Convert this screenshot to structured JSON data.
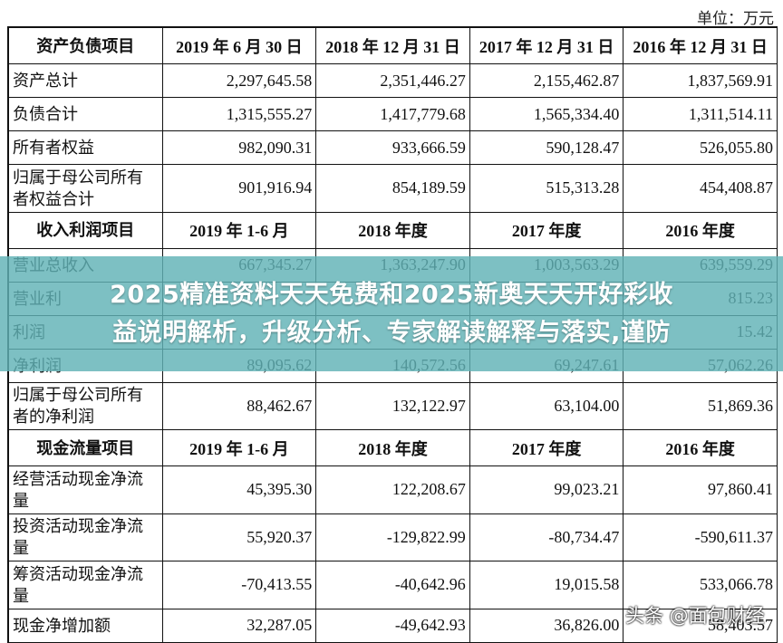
{
  "unit": "单位：万元",
  "sections": [
    {
      "header": [
        "资产负债项目",
        "2019 年 6 月 30 日",
        "2018 年 12 月 31 日",
        "2017 年 12 月 31 日",
        "2016 年 12 月 31 日"
      ],
      "rows": [
        [
          "资产总计",
          "2,297,645.58",
          "2,351,446.27",
          "2,155,462.87",
          "1,837,569.91"
        ],
        [
          "负债合计",
          "1,315,555.27",
          "1,417,779.68",
          "1,565,334.40",
          "1,311,514.11"
        ],
        [
          "所有者权益",
          "982,090.31",
          "933,666.59",
          "590,128.47",
          "526,055.80"
        ],
        [
          "归属于母公司所有者权益合计",
          "901,916.94",
          "854,189.59",
          "515,313.28",
          "454,408.87"
        ]
      ]
    },
    {
      "header": [
        "收入利润项目",
        "2019 年 1-6 月",
        "2018 年度",
        "2017 年度",
        "2016 年度"
      ],
      "rows": [
        [
          "营业总收入",
          "667,345.27",
          "1,363,247.90",
          "1,003,563.29",
          "639,559.29"
        ],
        [
          "营业利",
          null,
          null,
          null,
          "815.23"
        ],
        [
          "利润",
          null,
          null,
          null,
          "15.42"
        ],
        [
          "净利润",
          "89,095.62",
          "140,572.56",
          "69,247.61",
          "57,062.26"
        ],
        [
          "归属于母公司所有者的净利润",
          "88,462.67",
          "132,122.97",
          "63,104.00",
          "51,869.36"
        ]
      ]
    },
    {
      "header": [
        "现金流量项目",
        "2019 年 1-6 月",
        "2018 年度",
        "2017 年度",
        "2016 年度"
      ],
      "rows": [
        [
          "经营活动现金净流量",
          "45,395.30",
          "122,208.67",
          "99,023.21",
          "97,860.41"
        ],
        [
          "投资活动现金净流量",
          "55,920.37",
          "-129,822.99",
          "-80,734.47",
          "-590,611.37"
        ],
        [
          "筹资活动现金净流量",
          "-70,413.55",
          "-40,642.96",
          "19,015.58",
          "533,066.78"
        ],
        [
          "现金净增加额",
          "32,287.05",
          "-49,642.93",
          "36,826.00",
          "58,403.57"
        ]
      ]
    }
  ],
  "banner": {
    "lines": [
      "2025精准资料天天免费和2025新奥天天开好彩收",
      "益说明解析，升级分析、专家解读解释与落实,谨防"
    ]
  },
  "watermark": "头条 @面包财经"
}
